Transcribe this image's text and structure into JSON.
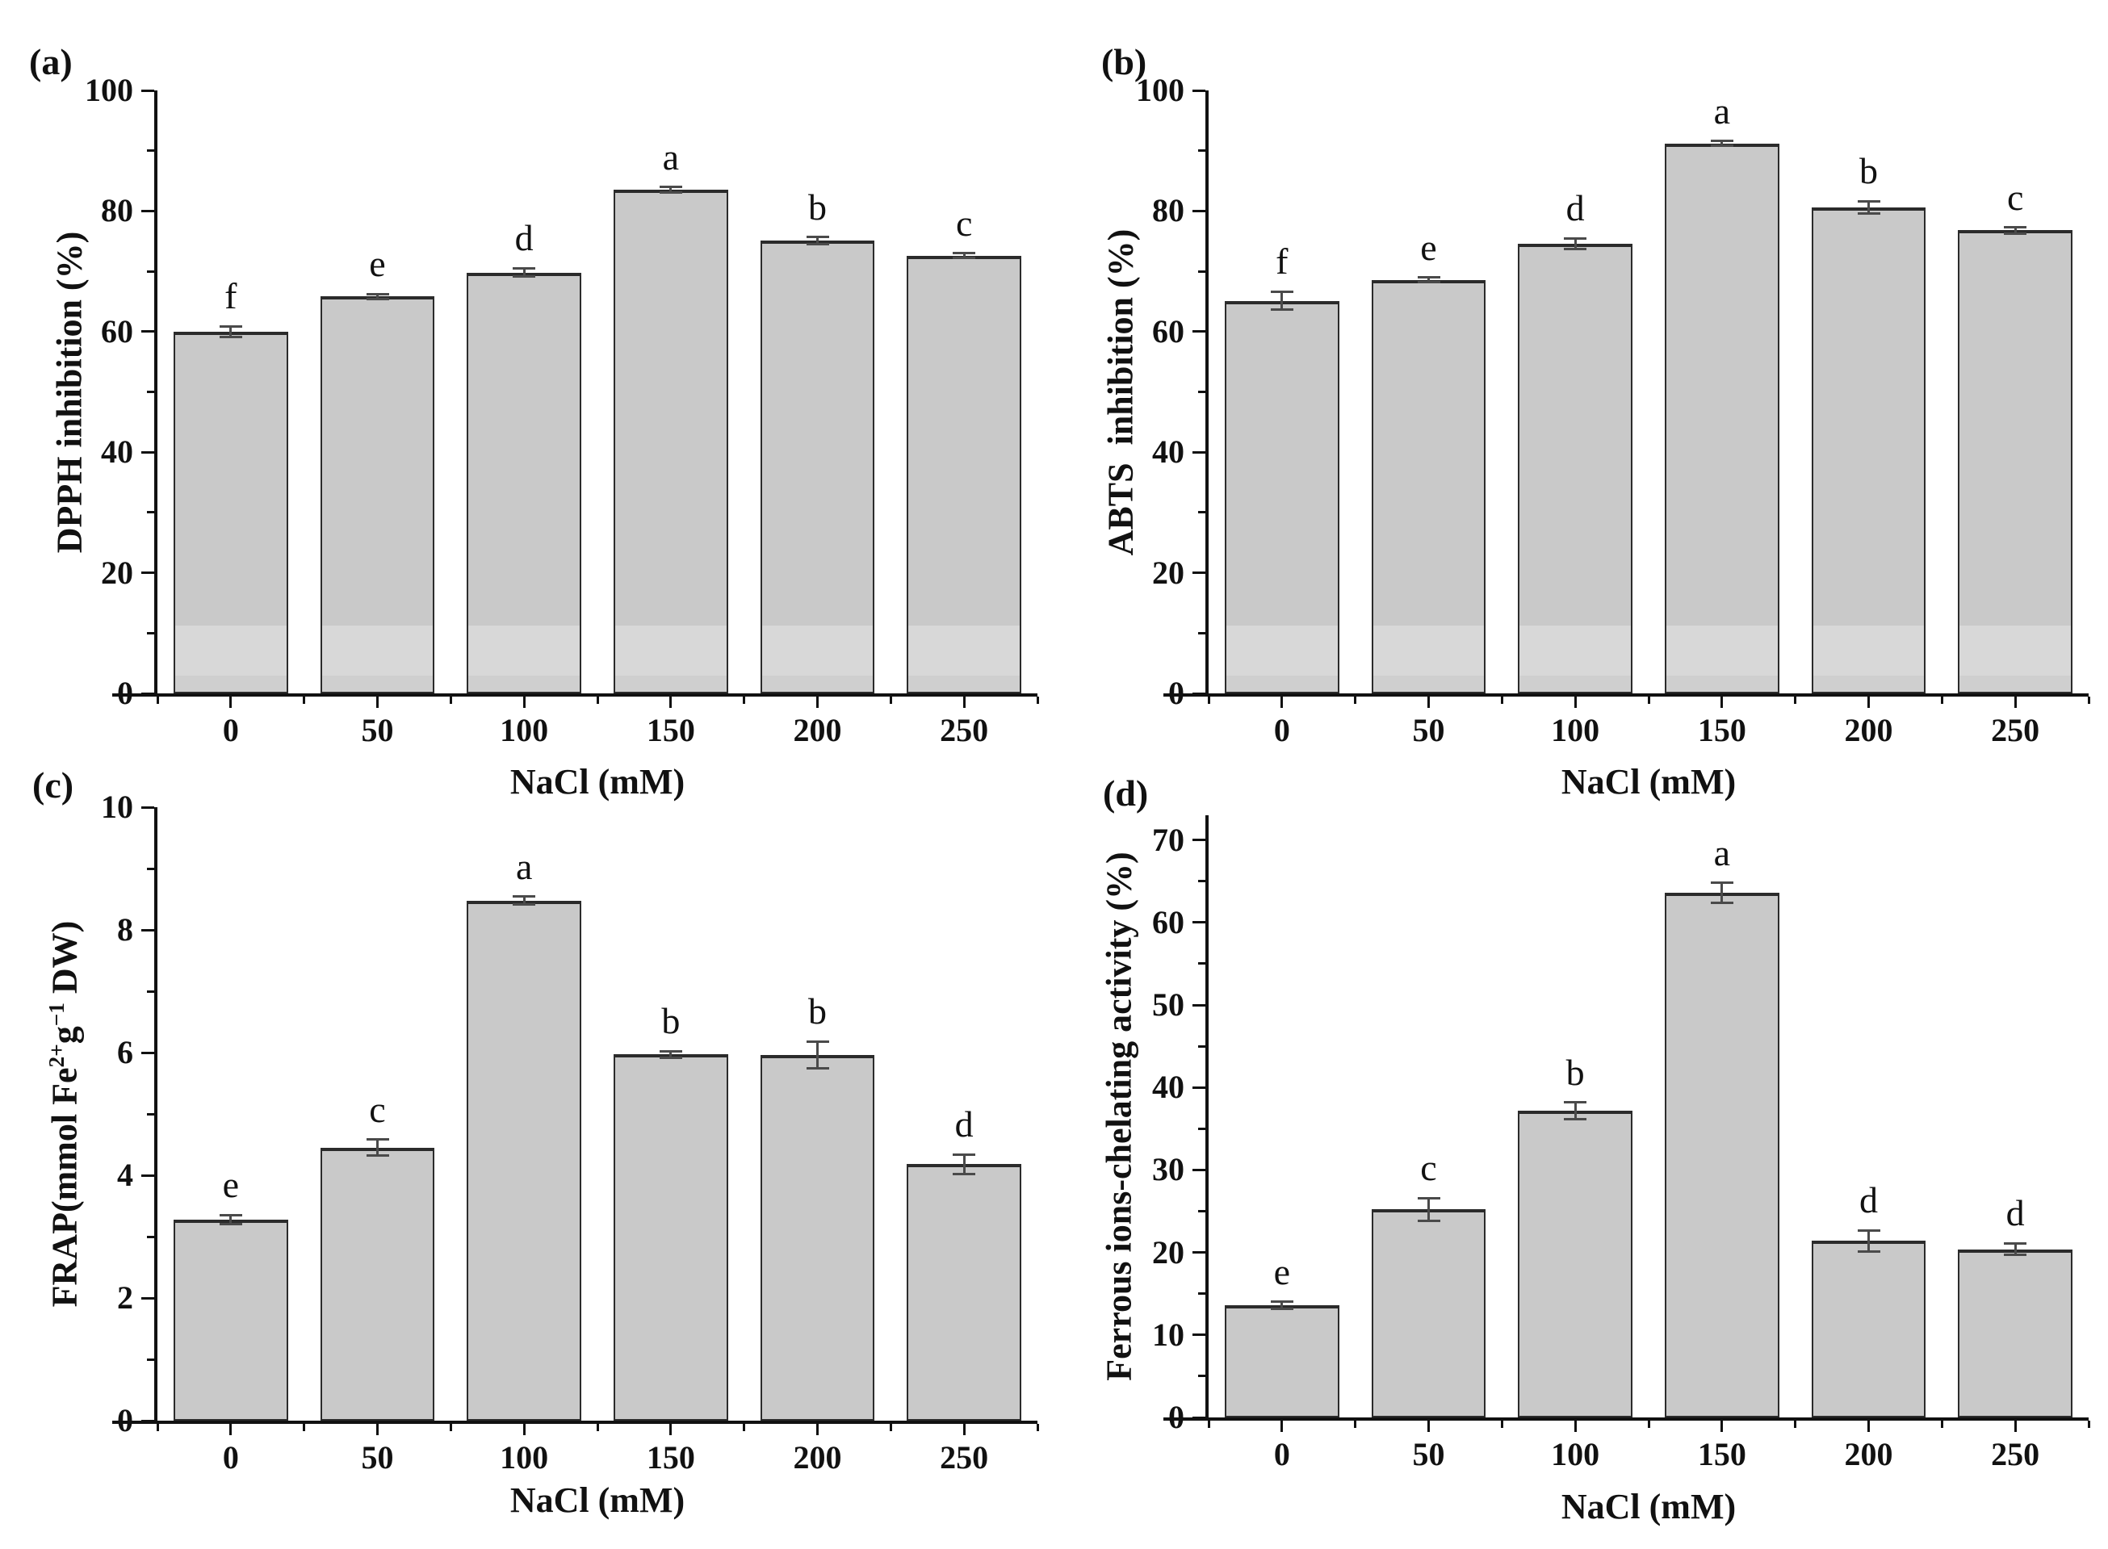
{
  "figure": {
    "background": "#ffffff",
    "panel_count": 4,
    "shared_x_axis_title": "NaCl (mM)"
  },
  "chart_data": [
    {
      "id": "a",
      "panel_label": "(a)",
      "type": "bar",
      "title": "",
      "xlabel": "NaCl (mM)",
      "ylabel": "DPPH inhibition (%)",
      "categories": [
        "0",
        "50",
        "100",
        "150",
        "200",
        "250"
      ],
      "values": [
        60.0,
        65.8,
        69.8,
        83.5,
        75.1,
        72.6
      ],
      "errors": [
        0.9,
        0.4,
        0.7,
        0.5,
        0.6,
        0.4
      ],
      "letters": [
        "f",
        "e",
        "d",
        "a",
        "b",
        "c"
      ],
      "ylim": [
        0,
        100
      ],
      "yticks": [
        0,
        20,
        40,
        60,
        80,
        100
      ],
      "yticks_minor": [
        10,
        30,
        50,
        70,
        90
      ],
      "grid": false,
      "legend": null,
      "band": {
        "from": 3,
        "to": 11.3
      }
    },
    {
      "id": "b",
      "panel_label": "(b)",
      "type": "bar",
      "title": "",
      "xlabel": "NaCl (mM)",
      "ylabel": "ABTS  inhibition (%)",
      "categories": [
        "0",
        "50",
        "100",
        "150",
        "200",
        "250"
      ],
      "values": [
        65.1,
        68.6,
        74.6,
        91.2,
        80.6,
        76.8
      ],
      "errors": [
        1.5,
        0.4,
        0.9,
        0.4,
        1.0,
        0.5
      ],
      "letters": [
        "f",
        "e",
        "d",
        "a",
        "b",
        "c"
      ],
      "ylim": [
        0,
        100
      ],
      "yticks": [
        0,
        20,
        40,
        60,
        80,
        100
      ],
      "yticks_minor": [
        10,
        30,
        50,
        70,
        90
      ],
      "grid": false,
      "legend": null,
      "band": {
        "from": 3,
        "to": 11.3
      }
    },
    {
      "id": "c",
      "panel_label": "(c)",
      "type": "bar",
      "title": "",
      "xlabel": "NaCl (mM)",
      "ylabel": "FRAP(mmol Fe2+g−1 DW)",
      "ylabel_parts": [
        {
          "text": "FRAP(mmol Fe",
          "sup": false
        },
        {
          "text": "2+",
          "sup": true
        },
        {
          "text": "g",
          "sup": false
        },
        {
          "text": "−1",
          "sup": true
        },
        {
          "text": " DW)",
          "sup": false
        }
      ],
      "categories": [
        "0",
        "50",
        "100",
        "150",
        "200",
        "250"
      ],
      "values": [
        3.28,
        4.45,
        8.48,
        5.97,
        5.96,
        4.18
      ],
      "errors": [
        0.07,
        0.13,
        0.06,
        0.05,
        0.22,
        0.16
      ],
      "letters": [
        "e",
        "c",
        "a",
        "b",
        "b",
        "d"
      ],
      "ylim": [
        0,
        10
      ],
      "yticks": [
        0,
        2,
        4,
        6,
        8,
        10
      ],
      "yticks_minor": [
        1,
        3,
        5,
        7,
        9
      ],
      "grid": false,
      "legend": null,
      "band": null
    },
    {
      "id": "d",
      "panel_label": "(d)",
      "type": "bar",
      "title": "",
      "xlabel": "NaCl (mM)",
      "ylabel": "Ferrous ions-chelating activity (%)",
      "categories": [
        "0",
        "50",
        "100",
        "150",
        "200",
        "250"
      ],
      "values": [
        13.6,
        25.2,
        37.2,
        63.6,
        21.4,
        20.4
      ],
      "errors": [
        0.4,
        1.4,
        1.0,
        1.2,
        1.3,
        0.7
      ],
      "letters": [
        "e",
        "c",
        "b",
        "a",
        "d",
        "d"
      ],
      "ylim": [
        0,
        73
      ],
      "yticks": [
        0,
        10,
        20,
        30,
        40,
        50,
        60,
        70
      ],
      "yticks_minor": [
        5,
        15,
        25,
        35,
        45,
        55,
        65
      ],
      "grid": false,
      "legend": null,
      "band": null
    }
  ],
  "style": {
    "bar_fill": "#c9c9c9",
    "bar_border": "#2b2b2b",
    "axis_color": "#111111",
    "error_color": "#4a4a4a",
    "text_color": "#111111",
    "band_highlight": "rgba(255,255,255,0.28)",
    "band_low": "rgba(255,255,255,0.12)"
  }
}
